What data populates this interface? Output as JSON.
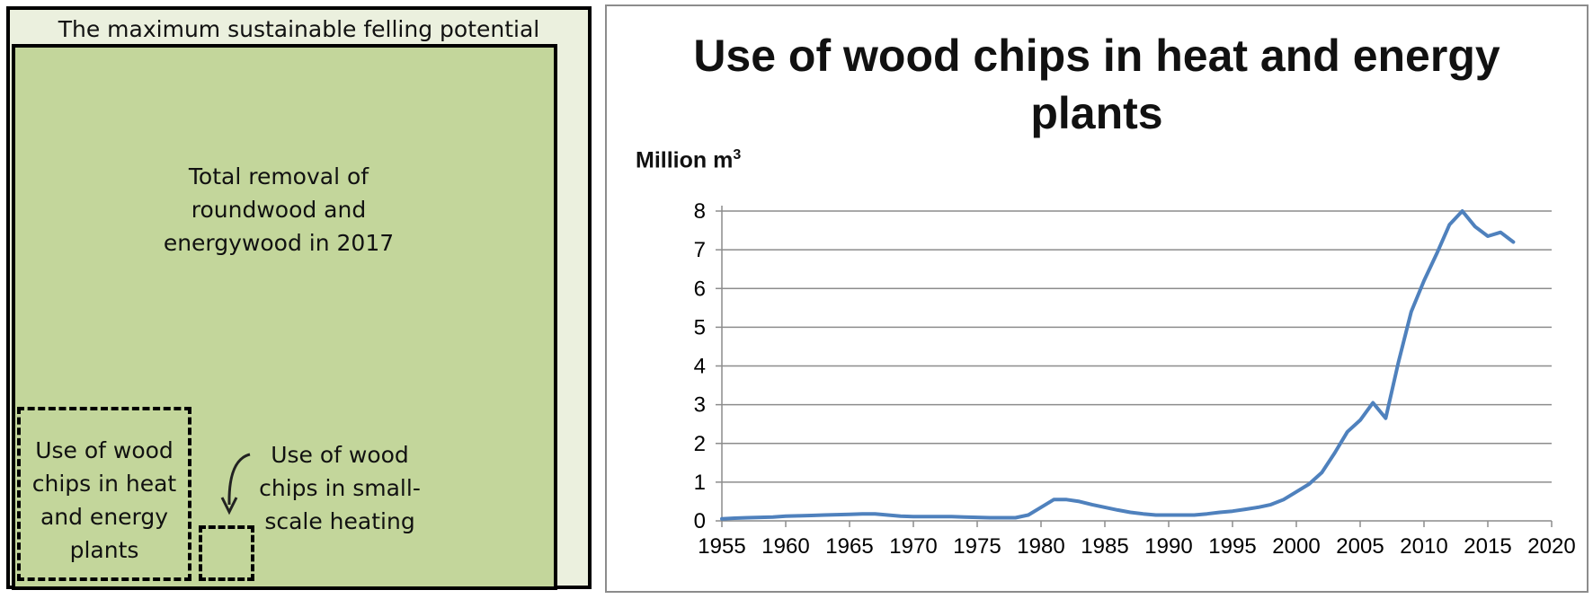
{
  "diagram": {
    "outer_label": "The maximum sustainable felling potential",
    "inner_label": "Total removal of\nroundwood and\nenergywood in 2017",
    "heat_label": "Use of wood\nchips in heat\nand energy\nplants",
    "small_label": "Use of wood\nchips in small-\nscale heating"
  },
  "chart_data": {
    "type": "line",
    "title": "Use of wood chips in heat and energy\nplants",
    "ylabel": "Million m",
    "ylabel_superscript": "3",
    "xlabel": "",
    "xlim": [
      1955,
      2020
    ],
    "ylim": [
      0,
      8
    ],
    "x_ticks": [
      1955,
      1960,
      1965,
      1970,
      1975,
      1980,
      1985,
      1990,
      1995,
      2000,
      2005,
      2010,
      2015,
      2020
    ],
    "y_ticks": [
      0,
      1,
      2,
      3,
      4,
      5,
      6,
      7,
      8
    ],
    "grid": "horizontal",
    "series": [
      {
        "color": "#4f81bd",
        "x": [
          1955,
          1956,
          1957,
          1958,
          1959,
          1960,
          1961,
          1962,
          1963,
          1964,
          1965,
          1966,
          1967,
          1968,
          1969,
          1970,
          1971,
          1972,
          1973,
          1974,
          1975,
          1976,
          1977,
          1978,
          1979,
          1980,
          1981,
          1982,
          1983,
          1984,
          1985,
          1986,
          1987,
          1988,
          1989,
          1990,
          1991,
          1992,
          1993,
          1994,
          1995,
          1996,
          1997,
          1998,
          1999,
          2000,
          2001,
          2002,
          2003,
          2004,
          2005,
          2006,
          2007,
          2008,
          2009,
          2010,
          2011,
          2012,
          2013,
          2014,
          2015,
          2016,
          2017
        ],
        "values": [
          0.05,
          0.07,
          0.08,
          0.09,
          0.1,
          0.12,
          0.13,
          0.14,
          0.15,
          0.16,
          0.17,
          0.18,
          0.18,
          0.15,
          0.12,
          0.11,
          0.11,
          0.11,
          0.11,
          0.1,
          0.09,
          0.08,
          0.08,
          0.08,
          0.15,
          0.35,
          0.55,
          0.55,
          0.5,
          0.42,
          0.35,
          0.28,
          0.22,
          0.18,
          0.15,
          0.15,
          0.15,
          0.15,
          0.18,
          0.22,
          0.25,
          0.3,
          0.35,
          0.42,
          0.55,
          0.75,
          0.95,
          1.25,
          1.75,
          2.3,
          2.6,
          3.05,
          2.65,
          4.1,
          5.4,
          6.2,
          6.9,
          7.65,
          8.0,
          7.6,
          7.35,
          7.45,
          7.2
        ]
      }
    ]
  }
}
